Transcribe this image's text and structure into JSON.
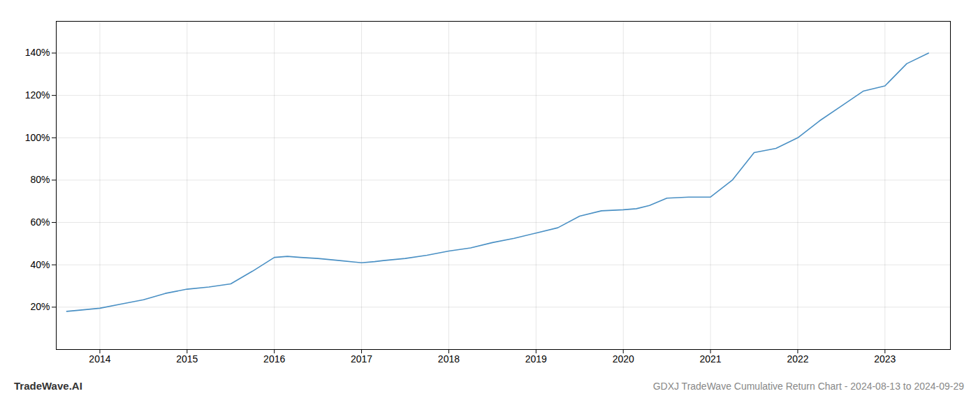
{
  "chart_data": {
    "type": "line",
    "title": "GDXJ TradeWave Cumulative Return Chart - 2024-08-13 to 2024-09-29",
    "annotations": [
      "TradeWave.AI"
    ],
    "color": "#4a90c4",
    "grid": true,
    "x": [
      2013.62,
      2013.75,
      2014.0,
      2014.25,
      2014.5,
      2014.75,
      2015.0,
      2015.25,
      2015.5,
      2015.75,
      2016.0,
      2016.15,
      2016.3,
      2016.5,
      2016.75,
      2017.0,
      2017.15,
      2017.25,
      2017.5,
      2017.75,
      2018.0,
      2018.25,
      2018.5,
      2018.75,
      2019.0,
      2019.25,
      2019.5,
      2019.75,
      2020.0,
      2020.15,
      2020.3,
      2020.5,
      2020.75,
      2021.0,
      2021.25,
      2021.5,
      2021.75,
      2022.0,
      2022.25,
      2022.5,
      2022.75,
      2023.0,
      2023.25,
      2023.5
    ],
    "values": [
      18.0,
      18.5,
      19.5,
      21.5,
      23.5,
      26.5,
      28.5,
      29.5,
      31.0,
      37.0,
      43.5,
      44.0,
      43.5,
      43.0,
      42.0,
      41.0,
      41.5,
      42.0,
      43.0,
      44.5,
      46.5,
      48.0,
      50.5,
      52.5,
      55.0,
      57.5,
      63.0,
      65.5,
      66.0,
      66.5,
      68.0,
      71.5,
      72.0,
      72.0,
      80.0,
      93.0,
      95.0,
      100.0,
      108.0,
      115.0,
      122.0,
      124.5,
      135.0,
      140.0
    ],
    "xlim": [
      2013.5,
      2023.75
    ],
    "xticks": [
      2014,
      2015,
      2016,
      2017,
      2018,
      2019,
      2020,
      2021,
      2022,
      2023
    ],
    "ylim": [
      0,
      155
    ],
    "yticks": [
      {
        "value": 20,
        "label": "20%"
      },
      {
        "value": 40,
        "label": "40%"
      },
      {
        "value": 60,
        "label": "60%"
      },
      {
        "value": 80,
        "label": "80%"
      },
      {
        "value": 100,
        "label": "100%"
      },
      {
        "value": 120,
        "label": "120%"
      },
      {
        "value": 140,
        "label": "140%"
      }
    ]
  }
}
